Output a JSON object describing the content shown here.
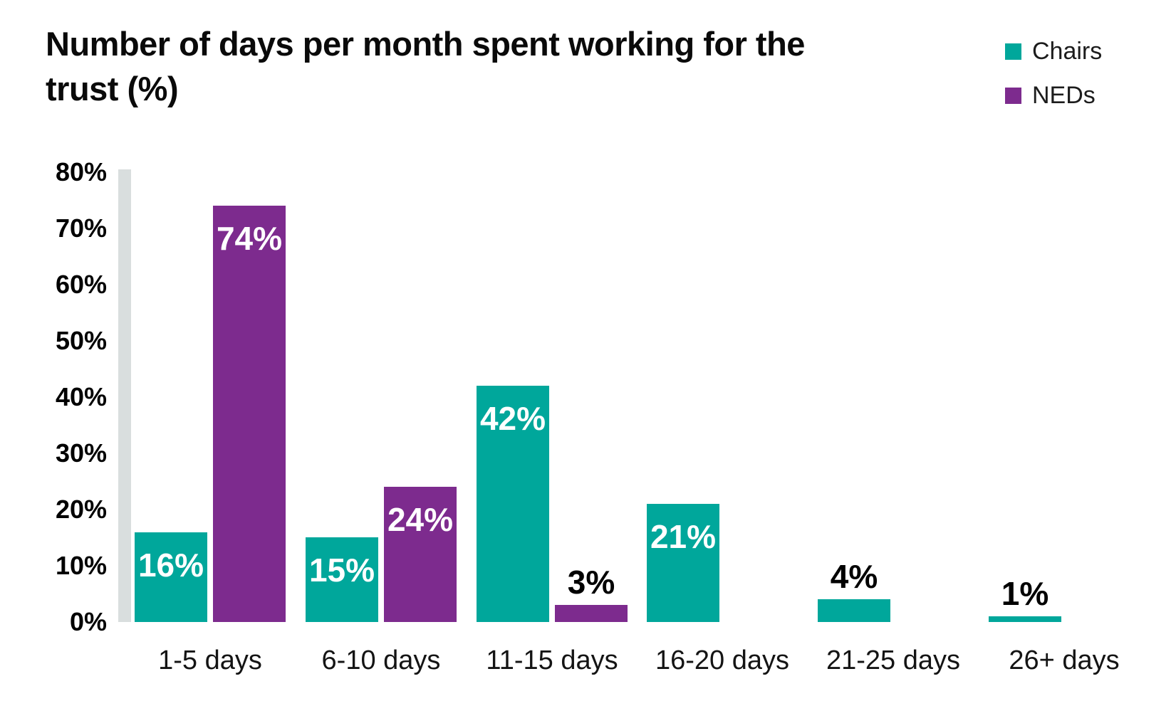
{
  "header": {
    "title_display": "Number of days per month spent working for the\ntrust (%)"
  },
  "legend": {
    "items": [
      {
        "label": "Chairs",
        "color": "#00A79B"
      },
      {
        "label": "NEDs",
        "color": "#7D2B8E"
      }
    ]
  },
  "chart_data": {
    "type": "bar",
    "title": "Number of days per month spent working for the trust (%)",
    "categories": [
      "1-5 days",
      "6-10 days",
      "11-15 days",
      "16-20 days",
      "21-25 days",
      "26+ days"
    ],
    "series": [
      {
        "name": "Chairs",
        "color": "#00A79B",
        "values": [
          16,
          15,
          42,
          21,
          4,
          1
        ],
        "labels": [
          "16%",
          "15%",
          "42%",
          "21%",
          "4%",
          "1%"
        ]
      },
      {
        "name": "NEDs",
        "color": "#7D2B8E",
        "values": [
          74,
          24,
          3,
          null,
          null,
          null
        ],
        "labels": [
          "74%",
          "24%",
          "3%",
          null,
          null,
          null
        ]
      }
    ],
    "xlabel": "",
    "ylabel": "",
    "ylim": [
      0,
      80
    ],
    "yticks": [
      0,
      10,
      20,
      30,
      40,
      50,
      60,
      70,
      80
    ],
    "ytick_labels": [
      "0%",
      "10%",
      "20%",
      "30%",
      "40%",
      "50%",
      "60%",
      "70%",
      "80%"
    ],
    "grid": false,
    "legend_position": "top-right",
    "axis_bar_color": "#D9DEDE",
    "value_label_inside_color": "#FFFFFF",
    "value_label_outside_color": "#000000"
  }
}
